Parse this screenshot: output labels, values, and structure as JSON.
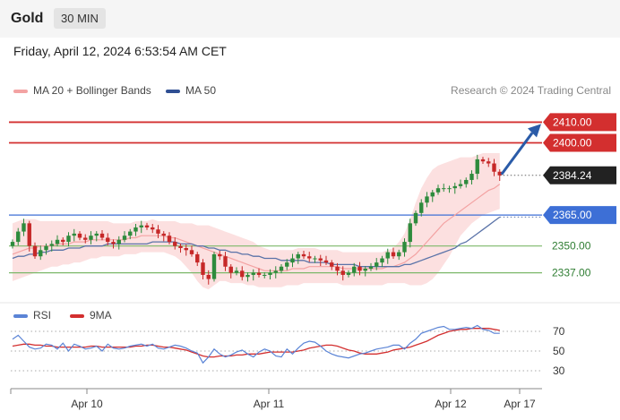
{
  "header": {
    "title": "Gold",
    "interval": "30 MIN"
  },
  "datetime": "Friday, April 12, 2024 6:53:54 AM CET",
  "legend": {
    "bb_label": "MA 20 + Bollinger Bands",
    "ma50_label": "MA 50",
    "rsi_label": "RSI",
    "rsi9_label": "9MA"
  },
  "credit": "Research © 2024 Trading Central",
  "colors": {
    "bb_fill": "#fbd5d5",
    "bb_line": "#f3a3a3",
    "ma50": "#5a73a8",
    "bull": "#2e8b3d",
    "bear": "#c62828",
    "resistance": "#d32f2f",
    "pivot": "#3d6fd6",
    "support": "#7cb86a",
    "rsi": "#5b84d6",
    "rsi9": "#d32f2f"
  },
  "chart_data": [
    {
      "type": "candlestick",
      "x_ticks": [
        "Apr 10",
        "Apr 11",
        "Apr 12",
        "Apr 17"
      ],
      "ylim": [
        2326,
        2418
      ],
      "levels": [
        {
          "value": 2410.0,
          "label": "2410.00",
          "kind": "resistance"
        },
        {
          "value": 2400.0,
          "label": "2400.00",
          "kind": "resistance"
        },
        {
          "value": 2384.24,
          "label": "2384.24",
          "kind": "last"
        },
        {
          "value": 2365.0,
          "label": "2365.00",
          "kind": "pivot"
        },
        {
          "value": 2350.0,
          "label": "2350.00",
          "kind": "support"
        },
        {
          "value": 2337.0,
          "label": "2337.00",
          "kind": "support"
        }
      ],
      "closes": [
        2352,
        2357,
        2361,
        2350,
        2345,
        2348,
        2350,
        2351,
        2353,
        2352,
        2355,
        2356,
        2354,
        2353,
        2355,
        2356,
        2354,
        2352,
        2351,
        2353,
        2355,
        2357,
        2359,
        2360,
        2359,
        2358,
        2356,
        2355,
        2352,
        2350,
        2349,
        2348,
        2346,
        2342,
        2336,
        2334,
        2346,
        2345,
        2340,
        2337,
        2338,
        2335,
        2336,
        2337,
        2336,
        2336,
        2337,
        2338,
        2340,
        2342,
        2344,
        2346,
        2345,
        2344,
        2344,
        2343,
        2342,
        2340,
        2338,
        2336,
        2337,
        2340,
        2338,
        2339,
        2340,
        2342,
        2344,
        2347,
        2345,
        2347,
        2352,
        2361,
        2366,
        2371,
        2374,
        2376,
        2378,
        2378,
        2378,
        2379,
        2380,
        2382,
        2385,
        2392,
        2391,
        2390,
        2386,
        2384.24
      ],
      "ma20": [
        2346,
        2347,
        2348,
        2349,
        2349,
        2350,
        2350,
        2350,
        2351,
        2351,
        2351,
        2352,
        2352,
        2352,
        2353,
        2353,
        2353,
        2353,
        2353,
        2353,
        2353,
        2354,
        2354,
        2355,
        2355,
        2355,
        2355,
        2355,
        2354,
        2354,
        2353,
        2352,
        2351,
        2350,
        2349,
        2348,
        2347,
        2346,
        2345,
        2344,
        2343,
        2342,
        2341,
        2340,
        2339,
        2338,
        2338,
        2338,
        2338,
        2338,
        2339,
        2339,
        2339,
        2340,
        2340,
        2340,
        2340,
        2340,
        2340,
        2339,
        2339,
        2339,
        2339,
        2339,
        2339,
        2339,
        2339,
        2340,
        2340,
        2341,
        2342,
        2344,
        2346,
        2349,
        2352,
        2355,
        2358,
        2361,
        2363,
        2365,
        2367,
        2369,
        2371,
        2373,
        2375,
        2377,
        2378,
        2380
      ],
      "bb_upper": [
        2361,
        2362,
        2363,
        2363,
        2363,
        2362,
        2362,
        2362,
        2362,
        2362,
        2362,
        2362,
        2362,
        2362,
        2362,
        2362,
        2362,
        2362,
        2361,
        2361,
        2361,
        2361,
        2362,
        2362,
        2362,
        2363,
        2362,
        2362,
        2362,
        2362,
        2361,
        2361,
        2361,
        2360,
        2360,
        2360,
        2359,
        2358,
        2357,
        2356,
        2355,
        2354,
        2353,
        2352,
        2350,
        2349,
        2348,
        2348,
        2348,
        2348,
        2348,
        2349,
        2349,
        2349,
        2349,
        2348,
        2348,
        2348,
        2348,
        2347,
        2347,
        2347,
        2347,
        2347,
        2347,
        2347,
        2347,
        2348,
        2349,
        2352,
        2356,
        2363,
        2371,
        2378,
        2383,
        2387,
        2389,
        2390,
        2391,
        2392,
        2393,
        2393,
        2393,
        2394,
        2395,
        2395,
        2395,
        2395
      ],
      "bb_lower": [
        2333,
        2334,
        2335,
        2336,
        2337,
        2338,
        2339,
        2340,
        2340,
        2341,
        2341,
        2342,
        2342,
        2343,
        2344,
        2344,
        2345,
        2345,
        2345,
        2345,
        2346,
        2346,
        2346,
        2347,
        2347,
        2347,
        2347,
        2347,
        2346,
        2345,
        2343,
        2340,
        2337,
        2333,
        2330,
        2329,
        2331,
        2333,
        2333,
        2332,
        2332,
        2332,
        2331,
        2331,
        2330,
        2330,
        2330,
        2330,
        2330,
        2331,
        2331,
        2331,
        2332,
        2332,
        2332,
        2332,
        2332,
        2332,
        2332,
        2331,
        2331,
        2331,
        2331,
        2331,
        2331,
        2331,
        2331,
        2332,
        2332,
        2332,
        2332,
        2331,
        2331,
        2331,
        2332,
        2334,
        2337,
        2341,
        2345,
        2350,
        2355,
        2358,
        2361,
        2363,
        2365,
        2366,
        2367,
        2368
      ],
      "ma50": [
        2344,
        2345,
        2345,
        2346,
        2346,
        2347,
        2347,
        2348,
        2348,
        2348,
        2349,
        2349,
        2349,
        2350,
        2350,
        2350,
        2350,
        2351,
        2351,
        2351,
        2351,
        2351,
        2351,
        2351,
        2351,
        2352,
        2352,
        2352,
        2352,
        2352,
        2351,
        2351,
        2351,
        2350,
        2350,
        2349,
        2349,
        2348,
        2348,
        2347,
        2347,
        2346,
        2346,
        2345,
        2345,
        2344,
        2344,
        2344,
        2343,
        2343,
        2343,
        2343,
        2343,
        2342,
        2342,
        2342,
        2342,
        2341,
        2341,
        2341,
        2341,
        2341,
        2340,
        2340,
        2340,
        2340,
        2340,
        2340,
        2340,
        2340,
        2341,
        2341,
        2342,
        2343,
        2344,
        2345,
        2346,
        2347,
        2348,
        2349,
        2351,
        2352,
        2354,
        2356,
        2358,
        2360,
        2362,
        2364
      ]
    },
    {
      "type": "line",
      "name": "RSI",
      "yticks": [
        30,
        50,
        70
      ],
      "levels": [
        30,
        50,
        70
      ],
      "rsi": [
        62,
        66,
        60,
        54,
        52,
        53,
        57,
        56,
        52,
        58,
        50,
        57,
        55,
        52,
        53,
        55,
        50,
        57,
        53,
        52,
        53,
        55,
        56,
        57,
        55,
        57,
        53,
        52,
        54,
        56,
        55,
        53,
        50,
        48,
        38,
        44,
        52,
        47,
        44,
        46,
        49,
        51,
        47,
        44,
        49,
        52,
        50,
        45,
        44,
        52,
        47,
        53,
        58,
        60,
        59,
        55,
        50,
        47,
        45,
        44,
        43,
        45,
        47,
        48,
        50,
        52,
        53,
        54,
        56,
        56,
        52,
        58,
        62,
        68,
        70,
        72,
        74,
        75,
        72,
        72,
        73,
        74,
        73,
        76,
        72,
        71,
        68,
        68
      ],
      "ma9": [
        55,
        56,
        57,
        57,
        56,
        56,
        55,
        55,
        54,
        54,
        54,
        54,
        54,
        54,
        55,
        55,
        54,
        54,
        54,
        54,
        54,
        54,
        55,
        55,
        56,
        56,
        55,
        54,
        54,
        53,
        52,
        51,
        49,
        47,
        45,
        44,
        44,
        45,
        45,
        45,
        46,
        46,
        47,
        47,
        47,
        48,
        49,
        49,
        49,
        49,
        49,
        50,
        51,
        53,
        54,
        55,
        56,
        56,
        55,
        53,
        51,
        50,
        48,
        47,
        47,
        47,
        48,
        49,
        51,
        52,
        53,
        54,
        56,
        58,
        60,
        63,
        66,
        68,
        70,
        71,
        72,
        72,
        73,
        73,
        73,
        73,
        72,
        71
      ]
    }
  ]
}
